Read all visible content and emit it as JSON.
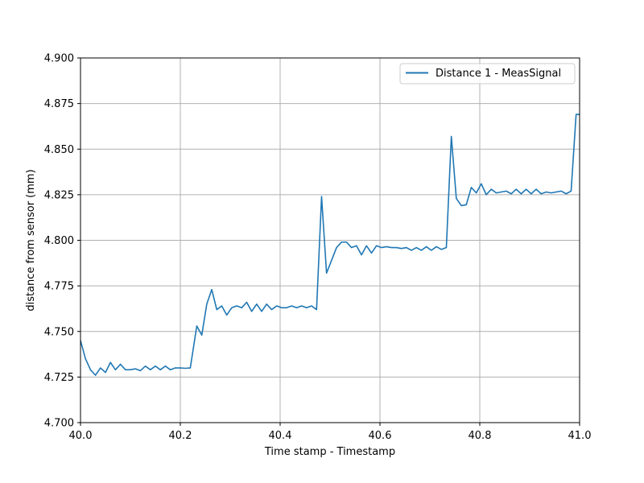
{
  "chart_data": {
    "type": "line",
    "title": "",
    "xlabel": "Time stamp - Timestamp",
    "ylabel": "distance from sensor (mm)",
    "xlim": [
      40.0,
      41.0
    ],
    "ylim": [
      4.7,
      4.9
    ],
    "xticks": [
      "40.0",
      "40.2",
      "40.4",
      "40.6",
      "40.8",
      "41.0"
    ],
    "yticks": [
      "4.700",
      "4.725",
      "4.750",
      "4.775",
      "4.800",
      "4.825",
      "4.850",
      "4.875",
      "4.900"
    ],
    "grid": true,
    "legend_position": "upper right",
    "series": [
      {
        "name": "Distance 1 - MeasSignal",
        "color": "#1f77b4",
        "x": [
          40.0,
          40.01,
          40.02,
          40.03,
          40.04,
          40.05,
          40.06,
          40.07,
          40.08,
          40.09,
          40.1,
          40.11,
          40.12,
          40.13,
          40.14,
          40.15,
          40.16,
          40.17,
          40.18,
          40.19,
          40.2,
          40.21,
          40.22,
          40.233,
          40.243,
          40.253,
          40.263,
          40.273,
          40.283,
          40.293,
          40.303,
          40.313,
          40.323,
          40.333,
          40.343,
          40.353,
          40.363,
          40.373,
          40.383,
          40.393,
          40.403,
          40.413,
          40.423,
          40.433,
          40.443,
          40.453,
          40.463,
          40.473,
          40.483,
          40.493,
          40.503,
          40.513,
          40.523,
          40.533,
          40.543,
          40.553,
          40.563,
          40.573,
          40.583,
          40.593,
          40.603,
          40.613,
          40.623,
          40.633,
          40.643,
          40.653,
          40.663,
          40.673,
          40.683,
          40.693,
          40.703,
          40.713,
          40.723,
          40.733,
          40.743,
          40.753,
          40.763,
          40.773,
          40.783,
          40.793,
          40.803,
          40.813,
          40.823,
          40.833,
          40.843,
          40.853,
          40.863,
          40.873,
          40.883,
          40.893,
          40.903,
          40.913,
          40.923,
          40.933,
          40.943,
          40.953,
          40.963,
          40.973,
          40.983,
          40.993,
          41.0
        ],
        "y": [
          4.745,
          4.735,
          4.729,
          4.726,
          4.73,
          4.7275,
          4.733,
          4.729,
          4.732,
          4.729,
          4.729,
          4.7295,
          4.7285,
          4.731,
          4.729,
          4.731,
          4.729,
          4.731,
          4.729,
          4.73,
          4.73,
          4.7298,
          4.73,
          4.753,
          4.748,
          4.765,
          4.773,
          4.762,
          4.764,
          4.759,
          4.763,
          4.764,
          4.763,
          4.766,
          4.761,
          4.765,
          4.761,
          4.765,
          4.762,
          4.764,
          4.763,
          4.763,
          4.764,
          4.763,
          4.764,
          4.763,
          4.764,
          4.762,
          4.824,
          4.782,
          4.789,
          4.796,
          4.799,
          4.799,
          4.796,
          4.797,
          4.792,
          4.797,
          4.793,
          4.797,
          4.796,
          4.7965,
          4.796,
          4.796,
          4.7955,
          4.796,
          4.7945,
          4.796,
          4.7945,
          4.7965,
          4.7945,
          4.7965,
          4.795,
          4.796,
          4.857,
          4.823,
          4.819,
          4.8195,
          4.829,
          4.826,
          4.831,
          4.825,
          4.828,
          4.826,
          4.8265,
          4.827,
          4.8255,
          4.828,
          4.8255,
          4.828,
          4.8255,
          4.828,
          4.8255,
          4.8265,
          4.826,
          4.8265,
          4.827,
          4.8255,
          4.827,
          4.869,
          4.869
        ]
      }
    ]
  }
}
